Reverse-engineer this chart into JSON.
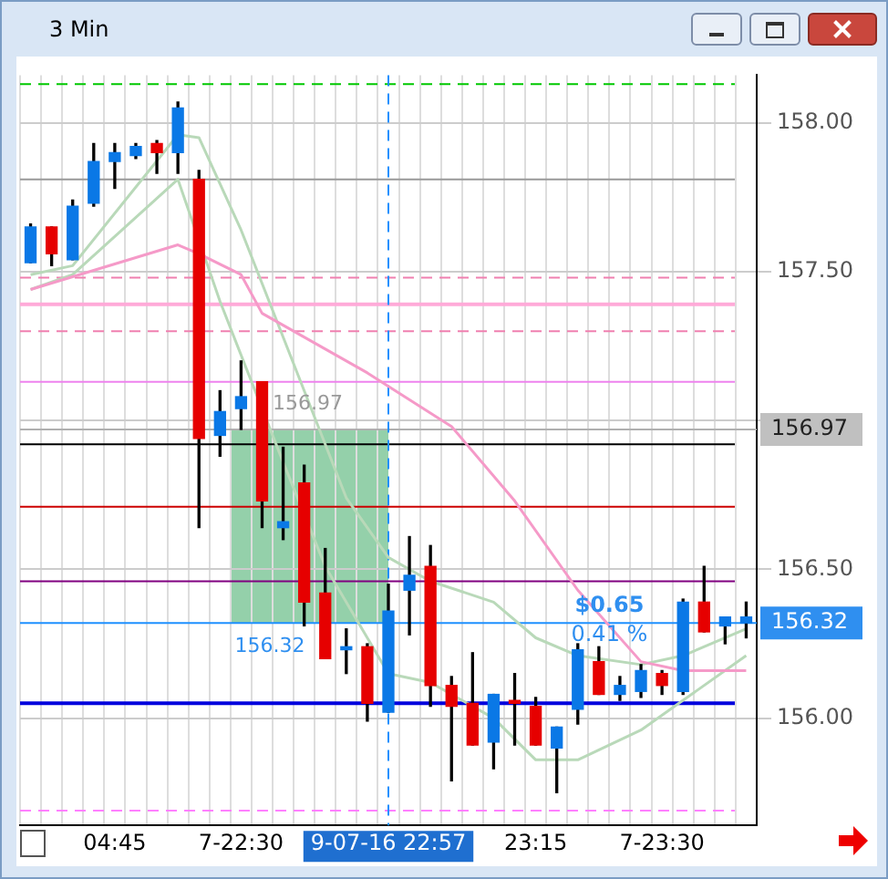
{
  "chart_data": {
    "type": "candlestick",
    "title": "3 Min",
    "categories": [
      null,
      null,
      null,
      null,
      "04:45",
      null,
      null,
      null,
      null,
      null,
      "7-22:30",
      null,
      null,
      null,
      null,
      null,
      null,
      "9-07-16 22:57",
      null,
      null,
      null,
      null,
      null,
      null,
      "23:15",
      null,
      null,
      null,
      null,
      null,
      "7-23:30",
      null,
      null,
      null,
      null
    ],
    "ohlc": [
      [
        157.53,
        157.66,
        157.53,
        157.65
      ],
      [
        157.65,
        157.65,
        157.52,
        157.56
      ],
      [
        157.54,
        157.74,
        157.54,
        157.72
      ],
      [
        157.73,
        157.93,
        157.72,
        157.87
      ],
      [
        157.87,
        157.93,
        157.78,
        157.9
      ],
      [
        157.89,
        157.93,
        157.88,
        157.92
      ],
      [
        157.93,
        157.94,
        157.83,
        157.9
      ],
      [
        157.9,
        158.07,
        157.83,
        158.05
      ],
      [
        157.81,
        157.84,
        156.64,
        156.94
      ],
      [
        156.95,
        157.1,
        156.88,
        157.03
      ],
      [
        157.04,
        157.2,
        156.97,
        157.08
      ],
      [
        157.13,
        157.13,
        156.64,
        156.73
      ],
      [
        156.64,
        156.91,
        156.6,
        156.66
      ],
      [
        156.79,
        156.85,
        156.31,
        156.39
      ],
      [
        156.42,
        156.57,
        156.2,
        156.2
      ],
      [
        156.23,
        156.3,
        156.15,
        156.24
      ],
      [
        156.24,
        156.25,
        155.99,
        156.05
      ],
      [
        156.02,
        156.45,
        156.02,
        156.36
      ],
      [
        156.43,
        156.61,
        156.28,
        156.48
      ],
      [
        156.51,
        156.58,
        156.04,
        156.11
      ],
      [
        156.11,
        156.14,
        155.79,
        156.04
      ],
      [
        156.05,
        156.22,
        155.91,
        155.91
      ],
      [
        155.92,
        156.08,
        155.83,
        156.08
      ],
      [
        156.06,
        156.15,
        155.91,
        156.05
      ],
      [
        156.04,
        156.07,
        155.91,
        155.91
      ],
      [
        155.9,
        155.97,
        155.75,
        155.97
      ],
      [
        156.03,
        156.25,
        155.98,
        156.23
      ],
      [
        156.19,
        156.24,
        156.08,
        156.08
      ],
      [
        156.08,
        156.14,
        156.06,
        156.11
      ],
      [
        156.09,
        156.18,
        156.07,
        156.16
      ],
      [
        156.15,
        156.16,
        156.08,
        156.11
      ],
      [
        156.09,
        156.4,
        156.08,
        156.39
      ],
      [
        156.39,
        156.51,
        156.29,
        156.29
      ],
      [
        156.31,
        156.34,
        156.25,
        156.34
      ],
      [
        156.32,
        156.39,
        156.27,
        156.34
      ]
    ],
    "series": [
      {
        "type": "line",
        "color": "#f59ac8",
        "values": [
          157.44,
          null,
          null,
          null,
          null,
          null,
          null,
          157.59,
          157.56,
          null,
          157.49,
          157.36,
          null,
          null,
          null,
          null,
          157.16,
          null,
          null,
          null,
          156.98,
          null,
          null,
          156.73,
          null,
          null,
          156.43,
          null,
          null,
          156.19,
          null,
          156.16,
          null,
          null,
          156.16
        ]
      },
      {
        "type": "line",
        "color": "#b9d9b9",
        "values": [
          157.49,
          null,
          157.52,
          null,
          null,
          null,
          null,
          157.96,
          157.95,
          null,
          157.64,
          null,
          null,
          157.1,
          null,
          156.74,
          null,
          156.54,
          null,
          156.46,
          null,
          null,
          156.39,
          null,
          156.27,
          null,
          156.21,
          null,
          null,
          156.18,
          null,
          156.21,
          null,
          null,
          156.3
        ]
      },
      {
        "type": "line",
        "color": "#b9d9b9",
        "values": [
          157.44,
          null,
          157.49,
          null,
          null,
          null,
          null,
          157.81,
          null,
          157.4,
          null,
          null,
          156.86,
          null,
          156.51,
          null,
          null,
          156.15,
          null,
          156.12,
          null,
          null,
          156.0,
          null,
          155.86,
          null,
          155.86,
          null,
          null,
          155.96,
          null,
          156.06,
          null,
          null,
          156.21
        ]
      }
    ],
    "ylim": [
      155.64,
      158.16
    ],
    "yticks": [
      {
        "value": 156,
        "label": "156.00"
      },
      {
        "value": 156.5,
        "label": "156.50"
      },
      {
        "value": 157,
        "label": null
      },
      {
        "value": 157.5,
        "label": "157.50"
      },
      {
        "value": 158,
        "label": "158.00"
      }
    ],
    "grid": true,
    "ref_lines": [
      {
        "axis": "y",
        "value": 158.13,
        "label": null,
        "color": "#00c800",
        "line_style": "dashed"
      },
      {
        "axis": "y",
        "value": 157.81,
        "label": null,
        "color": "#999999",
        "line_style": "solid"
      },
      {
        "axis": "y",
        "value": 157.48,
        "label": null,
        "color": "#f080b0",
        "line_style": "dashed"
      },
      {
        "axis": "y",
        "value": 157.39,
        "label": null,
        "color": "#ffaad8",
        "line_style": "solid"
      },
      {
        "axis": "y",
        "value": 157.3,
        "label": null,
        "color": "#f080b0",
        "line_style": "dashed"
      },
      {
        "axis": "y",
        "value": 157.13,
        "label": null,
        "color": "#ee82ee",
        "line_style": "solid"
      },
      {
        "axis": "y",
        "value": 156.97,
        "label": "156.97",
        "color": "#b0b0b0",
        "line_style": "solid"
      },
      {
        "axis": "y",
        "value": 156.92,
        "label": null,
        "color": "#000000",
        "line_style": "solid"
      },
      {
        "axis": "y",
        "value": 156.71,
        "label": null,
        "color": "#cc0000",
        "line_style": "solid"
      },
      {
        "axis": "y",
        "value": 156.46,
        "label": null,
        "color": "#800080",
        "line_style": "solid"
      },
      {
        "axis": "y",
        "value": 156.32,
        "label": "156.32",
        "color": "#1e90ff",
        "line_style": "solid"
      },
      {
        "axis": "y",
        "value": 156.05,
        "label": null,
        "color": "#0000dd",
        "line_style": "solid"
      },
      {
        "axis": "y",
        "value": 155.69,
        "label": null,
        "color": "#ff80ff",
        "line_style": "dashed"
      },
      {
        "axis": "x",
        "value": "9-07-16 22:57",
        "label": null,
        "color": "#1e90ff",
        "line_style": "dashed"
      }
    ],
    "annotations": [
      "156.97",
      "156.32",
      "$0.65",
      "0.41 %"
    ]
  }
}
